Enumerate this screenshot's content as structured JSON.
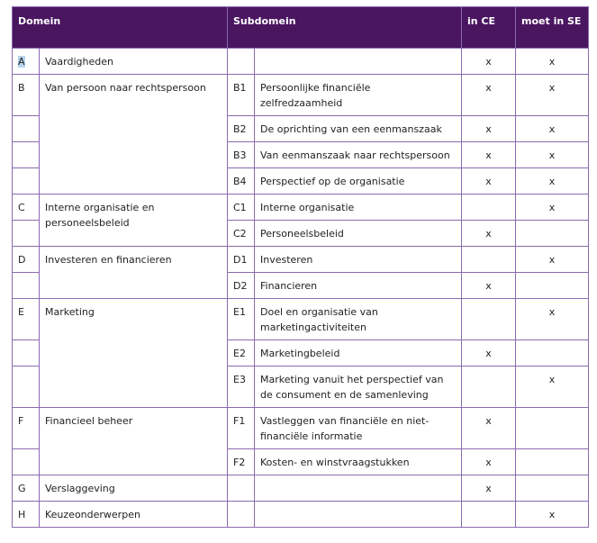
{
  "header": {
    "domein": "Domein",
    "subdomein": "Subdomein",
    "in_ce": "in CE",
    "moet_in_se": "moet in SE"
  },
  "rows": [
    {
      "letter": "A",
      "domain": "Vaardigheden",
      "span": 1,
      "code": "",
      "sub": "",
      "ce": "x",
      "se": "x"
    },
    {
      "letter": "B",
      "domain": "Van persoon naar rechtspersoon",
      "span": 4,
      "code": "B1",
      "sub": "Persoonlijke financiële zelfredzaamheid",
      "ce": "x",
      "se": "x"
    },
    {
      "letter": "",
      "code": "B2",
      "sub": "De oprichting van een eenmanszaak",
      "ce": "x",
      "se": "x"
    },
    {
      "letter": "",
      "code": "B3",
      "sub": "Van eenmanszaak naar rechtspersoon",
      "ce": "x",
      "se": "x"
    },
    {
      "letter": "",
      "code": "B4",
      "sub": "Perspectief op de organisatie",
      "ce": "x",
      "se": "x"
    },
    {
      "letter": "C",
      "domain": "Interne organisatie en personeelsbeleid",
      "span": 2,
      "code": "C1",
      "sub": "Interne organisatie",
      "ce": "",
      "se": "x"
    },
    {
      "letter": "",
      "code": "C2",
      "sub": "Personeelsbeleid",
      "ce": "x",
      "se": ""
    },
    {
      "letter": "D",
      "domain": "Investeren en financieren",
      "span": 2,
      "code": "D1",
      "sub": "Investeren",
      "ce": "",
      "se": "x"
    },
    {
      "letter": "",
      "code": "D2",
      "sub": "Financieren",
      "ce": "x",
      "se": ""
    },
    {
      "letter": "E",
      "domain": "Marketing",
      "span": 3,
      "code": "E1",
      "sub": "Doel en organisatie van marketingactiviteiten",
      "ce": "",
      "se": "x"
    },
    {
      "letter": "",
      "code": "E2",
      "sub": "Marketingbeleid",
      "ce": "x",
      "se": ""
    },
    {
      "letter": "",
      "code": "E3",
      "sub": "Marketing vanuit het perspectief van de consument en de samenleving",
      "ce": "",
      "se": "x"
    },
    {
      "letter": "F",
      "domain": "Financieel beheer",
      "span": 2,
      "code": "F1",
      "sub": "Vastleggen van financiële en niet-financiële informatie",
      "ce": "x",
      "se": ""
    },
    {
      "letter": "",
      "code": "F2",
      "sub": "Kosten- en winstvraagstukken",
      "ce": "x",
      "se": ""
    },
    {
      "letter": "G",
      "domain": "Verslaggeving",
      "span": 1,
      "code": "",
      "sub": "",
      "ce": "x",
      "se": ""
    },
    {
      "letter": "H",
      "domain": "Keuzeonderwerpen",
      "span": 1,
      "code": "",
      "sub": "",
      "ce": "",
      "se": "x"
    }
  ]
}
